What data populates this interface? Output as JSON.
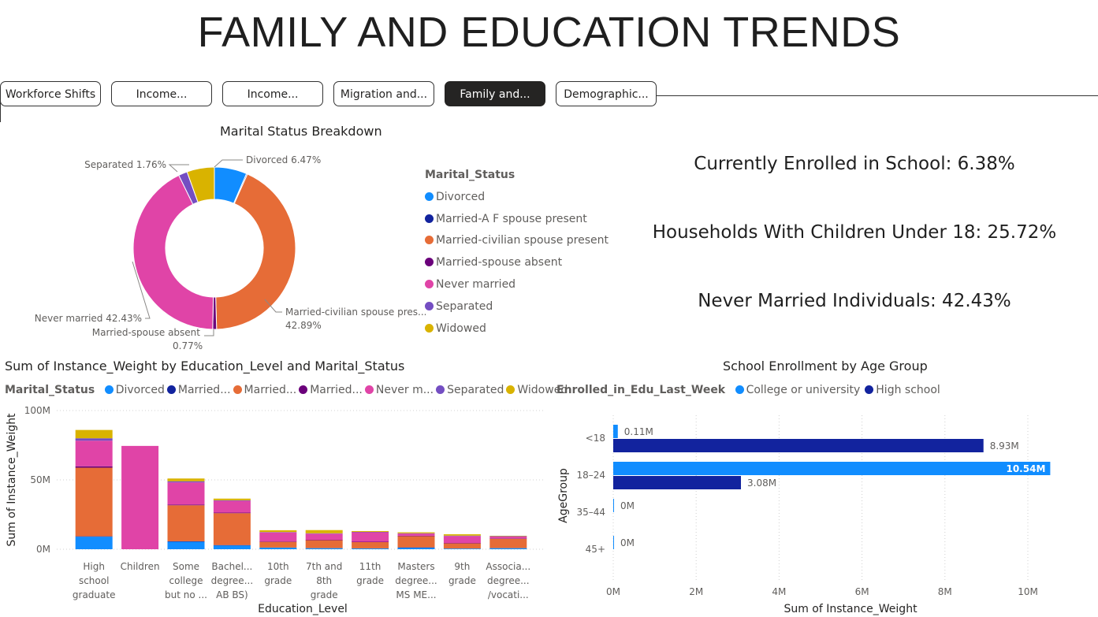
{
  "page_title": "FAMILY AND EDUCATION TRENDS",
  "tabs": [
    {
      "label": "Workforce Shifts",
      "active": false
    },
    {
      "label": "Income...",
      "active": false
    },
    {
      "label": "Income...",
      "active": false
    },
    {
      "label": "Migration and...",
      "active": false
    },
    {
      "label": "Family and...",
      "active": true
    },
    {
      "label": "Demographic...",
      "active": false
    }
  ],
  "colors": {
    "Divorced": "#118DFF",
    "Married-A F spouse present": "#12239E",
    "Married-civilian spouse present": "#E66C37",
    "Married-spouse absent": "#6B007B",
    "Never married": "#E044A7",
    "Separated": "#744EC2",
    "Widowed": "#D9B300",
    "College or university": "#118DFF",
    "High school": "#12239E"
  },
  "kpis": {
    "enrolled": "Currently Enrolled in School: 6.38%",
    "households": "Households With Children Under 18: 25.72%",
    "never_married": "Never Married Individuals: 42.43%"
  },
  "chart_data": [
    {
      "type": "pie",
      "title": "Marital Status Breakdown",
      "legend_title": "Marital_Status",
      "legend_position": "right",
      "slices": [
        {
          "label": "Divorced",
          "value": 6.47,
          "data_label": "Divorced 6.47%"
        },
        {
          "label": "Married-A F spouse present",
          "value": 0.21,
          "data_label": ""
        },
        {
          "label": "Married-civilian spouse present",
          "value": 42.89,
          "data_label": "Married-civilian spouse pres...",
          "data_label_2": "42.89%"
        },
        {
          "label": "Married-spouse absent",
          "value": 0.77,
          "data_label": "Married-spouse absent",
          "data_label_2": "0.77%"
        },
        {
          "label": "Never married",
          "value": 42.43,
          "data_label": "Never married 42.43%"
        },
        {
          "label": "Separated",
          "value": 1.76,
          "data_label": "Separated 1.76%"
        },
        {
          "label": "Widowed",
          "value": 5.47,
          "data_label": ""
        }
      ]
    },
    {
      "type": "bar",
      "stacked": true,
      "title": "Sum of Instance_Weight by Education_Level and Marital_Status",
      "legend_title": "Marital_Status",
      "legend_labels": [
        "Divorced",
        "Married...",
        "Married...",
        "Married...",
        "Never m...",
        "Separated",
        "Widowed"
      ],
      "xlabel": "Education_Level",
      "ylabel": "Sum of Instance_Weight",
      "ylim": [
        0,
        100
      ],
      "yticks": [
        {
          "v": 0,
          "label": "0M"
        },
        {
          "v": 50,
          "label": "50M"
        },
        {
          "v": 100,
          "label": "100M"
        }
      ],
      "categories": [
        [
          "High",
          "school",
          "graduate"
        ],
        [
          "Children"
        ],
        [
          "Some",
          "college",
          "but no ..."
        ],
        [
          "Bachel...",
          "degree...",
          "AB BS)"
        ],
        [
          "10th",
          "grade"
        ],
        [
          "7th and",
          "8th",
          "grade"
        ],
        [
          "11th",
          "grade"
        ],
        [
          "Masters",
          "degree...",
          "MS ME..."
        ],
        [
          "9th",
          "grade"
        ],
        [
          "Associa...",
          "degree...",
          "/vocati..."
        ]
      ],
      "series": [
        {
          "name": "Divorced",
          "values": [
            9,
            0,
            5.5,
            2.8,
            1.2,
            0.8,
            0.6,
            1.2,
            0.5,
            0.8
          ]
        },
        {
          "name": "Married-A F spouse present",
          "values": [
            0.3,
            0,
            0.2,
            0.2,
            0,
            0,
            0,
            0.1,
            0,
            0
          ]
        },
        {
          "name": "Married-civilian spouse present",
          "values": [
            49.5,
            0,
            26,
            23,
            4.2,
            5.8,
            4.6,
            8.2,
            3.8,
            6.8
          ]
        },
        {
          "name": "Married-spouse absent",
          "values": [
            1,
            0,
            0.5,
            0.4,
            0.2,
            0.2,
            0.2,
            0.2,
            0.2,
            0.2
          ]
        },
        {
          "name": "Never married",
          "values": [
            18.5,
            74.5,
            16,
            8.5,
            6.5,
            4.4,
            6.8,
            1.6,
            5,
            1.4
          ]
        },
        {
          "name": "Separated",
          "values": [
            1.7,
            0,
            0.8,
            0.4,
            0.3,
            0.3,
            0.3,
            0.2,
            0.3,
            0.2
          ]
        },
        {
          "name": "Widowed",
          "values": [
            6,
            0,
            2,
            1.2,
            1.3,
            2.3,
            0.6,
            0.7,
            1,
            0.3
          ]
        }
      ]
    },
    {
      "type": "bar",
      "orientation": "horizontal",
      "title": "School Enrollment by Age Group",
      "legend_title": "Enrolled_in_Edu_Last_Week",
      "xlabel": "Sum of Instance_Weight",
      "ylabel": "AgeGroup",
      "xlim": [
        0,
        11
      ],
      "xticks": [
        {
          "v": 0,
          "label": "0M"
        },
        {
          "v": 2,
          "label": "2M"
        },
        {
          "v": 4,
          "label": "4M"
        },
        {
          "v": 6,
          "label": "6M"
        },
        {
          "v": 8,
          "label": "8M"
        },
        {
          "v": 10,
          "label": "10M"
        }
      ],
      "categories": [
        "<18",
        "18–24",
        "35–44",
        "45+"
      ],
      "series": [
        {
          "name": "College or university",
          "values": [
            0.11,
            10.54,
            0,
            0
          ],
          "labels": [
            "0.11M",
            "10.54M",
            "0M",
            "0M"
          ]
        },
        {
          "name": "High school",
          "values": [
            8.93,
            3.08,
            0,
            0
          ],
          "labels": [
            "8.93M",
            "3.08M",
            "",
            ""
          ]
        }
      ]
    }
  ]
}
